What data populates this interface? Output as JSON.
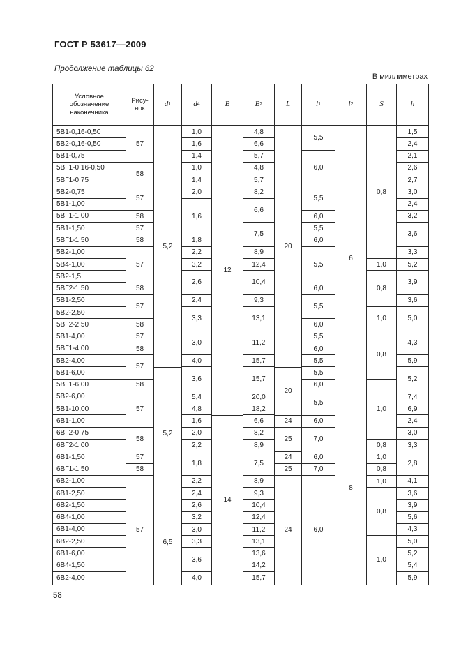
{
  "page": {
    "doc_number": "ГОСТ Р 53617—2009",
    "table_caption": "Продолжение таблицы 62",
    "units_note": "В миллиметрах",
    "page_number": "58"
  },
  "table": {
    "row_height": 17.28,
    "columns": [
      {
        "key": "name",
        "width": 105,
        "align": "left",
        "label_lines": [
          "Условное",
          "обозначение",
          "наконечника"
        ]
      },
      {
        "key": "fig",
        "width": 40,
        "label_lines": [
          "Рису-",
          "нок"
        ]
      },
      {
        "key": "d1",
        "width": 40,
        "sym": "d",
        "sub": "1"
      },
      {
        "key": "d4",
        "width": 43,
        "sym": "d",
        "sub": "4"
      },
      {
        "key": "B",
        "width": 45,
        "sym": "B",
        "sub": ""
      },
      {
        "key": "B2",
        "width": 45,
        "sym": "B",
        "sub": "2"
      },
      {
        "key": "L",
        "width": 39,
        "sym": "L",
        "sub": ""
      },
      {
        "key": "l1",
        "width": 48,
        "sym": "l",
        "sub": "1"
      },
      {
        "key": "l2",
        "width": 45,
        "sym": "l",
        "sub": "2"
      },
      {
        "key": "S",
        "width": 43,
        "sym": "S",
        "sub": ""
      },
      {
        "key": "h",
        "width": 45,
        "sym": "h",
        "sub": ""
      }
    ],
    "cells": {
      "name": [
        [
          "5В1-0,16-0,50",
          1
        ],
        [
          "5В2-0,16-0,50",
          1
        ],
        [
          "5В1-0,75",
          1
        ],
        [
          "5ВГ1-0,16-0,50",
          1
        ],
        [
          "5ВГ1-0,75",
          1
        ],
        [
          "5В2-0,75",
          1
        ],
        [
          "5В1-1,00",
          1
        ],
        [
          "5ВГ1-1,00",
          1
        ],
        [
          "5В1-1,50",
          1
        ],
        [
          "5ВГ1-1,50",
          1
        ],
        [
          "5В2-1,00",
          1
        ],
        [
          "5В4-1,00",
          1
        ],
        [
          "5В2-1,5",
          1
        ],
        [
          "5ВГ2-1,50",
          1
        ],
        [
          "5В1-2,50",
          1
        ],
        [
          "5В2-2,50",
          1
        ],
        [
          "5ВГ2-2,50",
          1
        ],
        [
          "5В1-4,00",
          1
        ],
        [
          "5ВГ1-4,00",
          1
        ],
        [
          "5В2-4,00",
          1
        ],
        [
          "5В1-6,00",
          1
        ],
        [
          "5ВГ1-6,00",
          1
        ],
        [
          "5В2-6,00",
          1
        ],
        [
          "5В1-10,00",
          1
        ],
        [
          "6В1-1,00",
          1
        ],
        [
          "6ВГ2-0,75",
          1
        ],
        [
          "6ВГ2-1,00",
          1
        ],
        [
          "6В1-1,50",
          1
        ],
        [
          "6ВГ1-1,50",
          1
        ],
        [
          "6В2-1,00",
          1
        ],
        [
          "6В1-2,50",
          1
        ],
        [
          "6В2-1,50",
          1
        ],
        [
          "6В4-1,00",
          1
        ],
        [
          "6В1-4,00",
          1
        ],
        [
          "6В2-2,50",
          1
        ],
        [
          "6В1-6,00",
          1
        ],
        [
          "6В4-1,50",
          1
        ],
        [
          "6В2-4,00",
          1
        ]
      ],
      "fig": [
        [
          "57",
          3
        ],
        [
          "58",
          2
        ],
        [
          "57",
          2
        ],
        [
          "58",
          1
        ],
        [
          "57",
          1
        ],
        [
          "58",
          1
        ],
        [
          "57",
          3
        ],
        [
          "58",
          1
        ],
        [
          "57",
          2
        ],
        [
          "58",
          1
        ],
        [
          "57",
          1
        ],
        [
          "58",
          1
        ],
        [
          "57",
          2
        ],
        [
          "58",
          1
        ],
        [
          "57",
          3
        ],
        [
          "58",
          2
        ],
        [
          "57",
          1
        ],
        [
          "58",
          1
        ],
        [
          "57",
          9
        ]
      ],
      "d1": [
        [
          "5,2",
          20
        ],
        [
          "5,2",
          11
        ],
        [
          "6,5",
          7
        ]
      ],
      "d4": [
        [
          "1,0",
          1
        ],
        [
          "1,6",
          1
        ],
        [
          "1,4",
          1
        ],
        [
          "1,0",
          1
        ],
        [
          "1,4",
          1
        ],
        [
          "2,0",
          1
        ],
        [
          "1,6",
          3
        ],
        [
          "1,8",
          1
        ],
        [
          "2,2",
          1
        ],
        [
          "3,2",
          1
        ],
        [
          "2,6",
          2
        ],
        [
          "2,4",
          1
        ],
        [
          "3,3",
          2
        ],
        [
          "3,0",
          2
        ],
        [
          "4,0",
          1
        ],
        [
          "3,6",
          2
        ],
        [
          "5,4",
          1
        ],
        [
          "4,8",
          1
        ],
        [
          "1,6",
          1
        ],
        [
          "2,0",
          1
        ],
        [
          "2,2",
          1
        ],
        [
          "1,8",
          2
        ],
        [
          "2,2",
          1
        ],
        [
          "2,4",
          1
        ],
        [
          "2,6",
          1
        ],
        [
          "3,2",
          1
        ],
        [
          "3,0",
          1
        ],
        [
          "3,3",
          1
        ],
        [
          "3,6",
          2
        ],
        [
          "4,0",
          1
        ]
      ],
      "B": [
        [
          "12",
          24
        ],
        [
          "14",
          14
        ]
      ],
      "B2": [
        [
          "4,8",
          1
        ],
        [
          "6,6",
          1
        ],
        [
          "5,7",
          1
        ],
        [
          "4,8",
          1
        ],
        [
          "5,7",
          1
        ],
        [
          "8,2",
          1
        ],
        [
          "6,6",
          2
        ],
        [
          "7,5",
          2
        ],
        [
          "8,9",
          1
        ],
        [
          "12,4",
          1
        ],
        [
          "10,4",
          2
        ],
        [
          "9,3",
          1
        ],
        [
          "13,1",
          2
        ],
        [
          "11,2",
          2
        ],
        [
          "15,7",
          1
        ],
        [
          "15,7",
          2
        ],
        [
          "20,0",
          1
        ],
        [
          "18,2",
          1
        ],
        [
          "6,6",
          1
        ],
        [
          "8,2",
          1
        ],
        [
          "8,9",
          1
        ],
        [
          "7,5",
          2
        ],
        [
          "8,9",
          1
        ],
        [
          "9,3",
          1
        ],
        [
          "10,4",
          1
        ],
        [
          "12,4",
          1
        ],
        [
          "11,2",
          1
        ],
        [
          "13,1",
          1
        ],
        [
          "13,6",
          1
        ],
        [
          "14,2",
          1
        ],
        [
          "15,7",
          1
        ]
      ],
      "L": [
        [
          "20",
          20
        ],
        [
          "20",
          4
        ],
        [
          "24",
          1
        ],
        [
          "25",
          2
        ],
        [
          "24",
          1
        ],
        [
          "25",
          1
        ],
        [
          "24",
          9
        ]
      ],
      "l1": [
        [
          "5,5",
          2
        ],
        [
          "6,0",
          3
        ],
        [
          "5,5",
          2
        ],
        [
          "6,0",
          1
        ],
        [
          "5,5",
          1
        ],
        [
          "6,0",
          1
        ],
        [
          "5,5",
          3
        ],
        [
          "6,0",
          1
        ],
        [
          "5,5",
          2
        ],
        [
          "6,0",
          1
        ],
        [
          "5,5",
          1
        ],
        [
          "6,0",
          1
        ],
        [
          "5,5",
          1
        ],
        [
          "5,5",
          1
        ],
        [
          "6,0",
          1
        ],
        [
          "5,5",
          2
        ],
        [
          "6,0",
          1
        ],
        [
          "7,0",
          2
        ],
        [
          "6,0",
          1
        ],
        [
          "7,0",
          1
        ],
        [
          "6,0",
          9
        ]
      ],
      "l2": [
        [
          "6",
          22
        ],
        [
          "8",
          16
        ]
      ],
      "S": [
        [
          "0,8",
          11
        ],
        [
          "1,0",
          1
        ],
        [
          "0,8",
          3
        ],
        [
          "1,0",
          2
        ],
        [
          "0,8",
          4
        ],
        [
          "1,0",
          5
        ],
        [
          "0,8",
          1
        ],
        [
          "1,0",
          1
        ],
        [
          "0,8",
          1
        ],
        [
          "1,0",
          1
        ],
        [
          "0,8",
          4
        ],
        [
          "1,0",
          4
        ]
      ],
      "h": [
        [
          "1,5",
          1
        ],
        [
          "2,4",
          1
        ],
        [
          "2,1",
          1
        ],
        [
          "2,6",
          1
        ],
        [
          "2,7",
          1
        ],
        [
          "3,0",
          1
        ],
        [
          "2,4",
          1
        ],
        [
          "3,2",
          1
        ],
        [
          "3,6",
          2
        ],
        [
          "3,3",
          1
        ],
        [
          "5,2",
          1
        ],
        [
          "3,9",
          2
        ],
        [
          "3,6",
          1
        ],
        [
          "5,0",
          2
        ],
        [
          "4,3",
          2
        ],
        [
          "5,9",
          1
        ],
        [
          "5,2",
          2
        ],
        [
          "7,4",
          1
        ],
        [
          "6,9",
          1
        ],
        [
          "2,4",
          1
        ],
        [
          "3,0",
          1
        ],
        [
          "3,3",
          1
        ],
        [
          "2,8",
          2
        ],
        [
          "4,1",
          1
        ],
        [
          "3,6",
          1
        ],
        [
          "3,9",
          1
        ],
        [
          "5,6",
          1
        ],
        [
          "4,3",
          1
        ],
        [
          "5,0",
          1
        ],
        [
          "5,2",
          1
        ],
        [
          "5,4",
          1
        ],
        [
          "5,9",
          1
        ]
      ]
    }
  }
}
